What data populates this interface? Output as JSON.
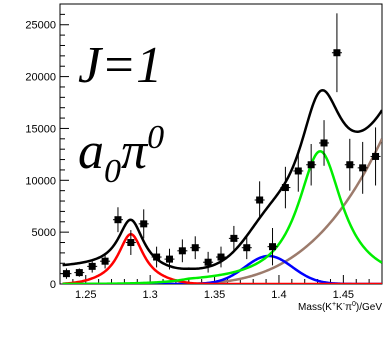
{
  "chart_data": {
    "type": "line",
    "xlabel_parts": [
      "Mass(K",
      "+",
      "K",
      "-",
      "π",
      "0",
      ")/GeV"
    ],
    "xlim": [
      1.23,
      1.48
    ],
    "ylim": [
      0,
      27000
    ],
    "x_ticks": [
      1.25,
      1.3,
      1.35,
      1.4,
      1.45
    ],
    "x_tick_labels": [
      "1.25",
      "1.3",
      "1.35",
      "1.4",
      "1.45"
    ],
    "y_ticks": [
      0,
      5000,
      10000,
      15000,
      20000,
      25000
    ],
    "y_tick_labels": [
      "0",
      "5000",
      "10000",
      "15000",
      "20000",
      "25000"
    ],
    "annotation_line1": "J=1",
    "annotation_line2_parts": [
      "a",
      "0",
      "π",
      "0"
    ],
    "colors": {
      "data": "#000000",
      "total": "#000000",
      "red": "#ff0000",
      "green": "#00ee00",
      "blue": "#0000ff",
      "brown": "#9c7b6c"
    },
    "data_points": {
      "x": [
        1.235,
        1.245,
        1.255,
        1.265,
        1.275,
        1.285,
        1.295,
        1.305,
        1.315,
        1.325,
        1.335,
        1.345,
        1.355,
        1.365,
        1.375,
        1.385,
        1.395,
        1.405,
        1.415,
        1.425,
        1.435,
        1.445,
        1.455,
        1.465,
        1.475
      ],
      "y": [
        1000,
        1100,
        1700,
        2200,
        6200,
        4000,
        5800,
        2600,
        2400,
        3200,
        3500,
        2100,
        2600,
        4400,
        3500,
        8100,
        3600,
        9300,
        10900,
        11500,
        13600,
        22300,
        11500,
        11200,
        12300
      ],
      "err": [
        500,
        400,
        600,
        700,
        1200,
        1200,
        1400,
        1000,
        1000,
        1100,
        1100,
        1000,
        1000,
        1200,
        1100,
        1800,
        1800,
        2000,
        2000,
        2000,
        2200,
        3800,
        2500,
        2500,
        2800
      ]
    }
  }
}
